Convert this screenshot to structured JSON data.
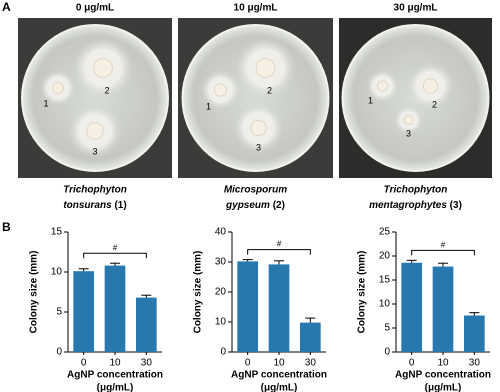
{
  "panel_a": {
    "label": "A",
    "dishes": [
      {
        "concentration": "0 μg/mL",
        "colonies": [
          "1",
          "2",
          "3"
        ],
        "genus": "Trichophyton",
        "species": "tonsurans",
        "number": "(1)"
      },
      {
        "concentration": "10 μg/mL",
        "colonies": [
          "1",
          "2",
          "3"
        ],
        "genus": "Microsporum",
        "species": "gypseum",
        "number": "(2)"
      },
      {
        "concentration": "30 μg/mL",
        "colonies": [
          "1",
          "2",
          "3"
        ],
        "genus": "Trichophyton",
        "species": "mentagrophytes",
        "number": "(3)"
      }
    ]
  },
  "panel_b": {
    "label": "B"
  },
  "chart_data": [
    {
      "type": "bar",
      "categories": [
        "0",
        "10",
        "30"
      ],
      "values": [
        10.1,
        10.8,
        6.8
      ],
      "errors": [
        0.3,
        0.3,
        0.3
      ],
      "color": "#2878b0",
      "ylabel": "Colony size (mm)",
      "xlabel": [
        "AgNP concentration",
        "(μg/mL)"
      ],
      "annotation": "#",
      "ylim": [
        0,
        15
      ],
      "yticks": [
        0,
        5,
        10,
        15
      ]
    },
    {
      "type": "bar",
      "categories": [
        "0",
        "10",
        "30"
      ],
      "values": [
        30.2,
        29.2,
        9.8
      ],
      "errors": [
        0.6,
        1.2,
        1.5
      ],
      "color": "#2878b0",
      "ylabel": "Colony size (mm)",
      "xlabel": [
        "AgNP concentration",
        "(μg/mL)"
      ],
      "annotation": "#",
      "ylim": [
        0,
        40
      ],
      "yticks": [
        0,
        10,
        20,
        30,
        40
      ]
    },
    {
      "type": "bar",
      "categories": [
        "0",
        "10",
        "30"
      ],
      "values": [
        18.6,
        17.8,
        7.6
      ],
      "errors": [
        0.5,
        0.7,
        0.6
      ],
      "color": "#2878b0",
      "ylabel": "Colony size (mm)",
      "xlabel": [
        "AgNP concentration",
        "(μg/mL)"
      ],
      "annotation": "#",
      "ylim": [
        0,
        25
      ],
      "yticks": [
        0,
        5,
        10,
        15,
        20,
        25
      ]
    }
  ]
}
